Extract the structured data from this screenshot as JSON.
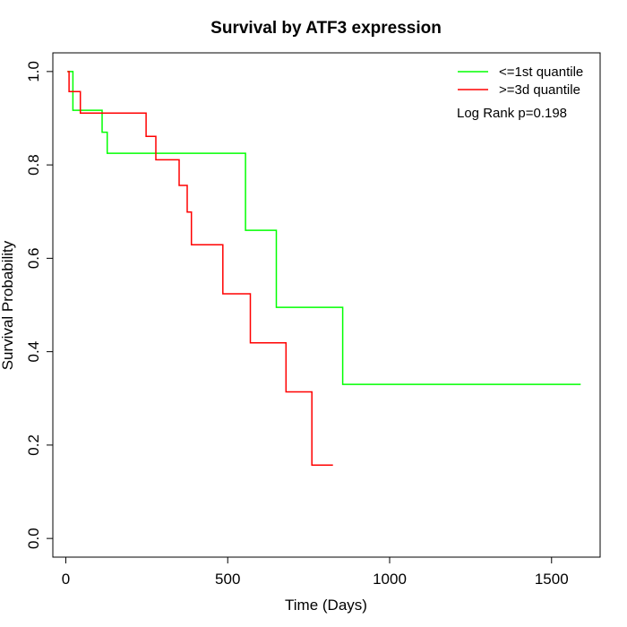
{
  "chart_data": {
    "type": "line",
    "subtype": "step",
    "title": "Survival by ATF3 expression",
    "xlabel": "Time (Days)",
    "ylabel": "Survival Probability",
    "xlim": [
      -40,
      1650
    ],
    "ylim": [
      -0.04,
      1.04
    ],
    "x_ticks": [
      0,
      500,
      1000,
      1500
    ],
    "x_tick_labels": [
      "0",
      "500",
      "1000",
      "1500"
    ],
    "y_ticks": [
      0.0,
      0.2,
      0.4,
      0.6,
      0.8,
      1.0
    ],
    "y_tick_labels": [
      "0.0",
      "0.2",
      "0.4",
      "0.6",
      "0.8",
      "1.0"
    ],
    "grid": false,
    "legend_position": "top-right",
    "annotation": "Log Rank p=0.198",
    "series": [
      {
        "name": "<=1st quantile",
        "color": "#00ff00",
        "points": [
          [
            5,
            1.0
          ],
          [
            22,
            1.0
          ],
          [
            22,
            0.917
          ],
          [
            112,
            0.917
          ],
          [
            112,
            0.87
          ],
          [
            128,
            0.87
          ],
          [
            128,
            0.825
          ],
          [
            555,
            0.825
          ],
          [
            555,
            0.66
          ],
          [
            650,
            0.66
          ],
          [
            650,
            0.495
          ],
          [
            855,
            0.495
          ],
          [
            855,
            0.33
          ],
          [
            1590,
            0.33
          ]
        ]
      },
      {
        "name": ">=3d quantile",
        "color": "#ff0000",
        "points": [
          [
            5,
            1.0
          ],
          [
            10,
            1.0
          ],
          [
            10,
            0.957
          ],
          [
            45,
            0.957
          ],
          [
            45,
            0.911
          ],
          [
            248,
            0.911
          ],
          [
            248,
            0.861
          ],
          [
            278,
            0.861
          ],
          [
            278,
            0.811
          ],
          [
            350,
            0.811
          ],
          [
            350,
            0.756
          ],
          [
            375,
            0.756
          ],
          [
            375,
            0.699
          ],
          [
            388,
            0.699
          ],
          [
            388,
            0.629
          ],
          [
            485,
            0.629
          ],
          [
            485,
            0.524
          ],
          [
            570,
            0.524
          ],
          [
            570,
            0.419
          ],
          [
            680,
            0.419
          ],
          [
            680,
            0.314
          ],
          [
            760,
            0.314
          ],
          [
            760,
            0.157
          ],
          [
            825,
            0.157
          ]
        ]
      }
    ]
  }
}
